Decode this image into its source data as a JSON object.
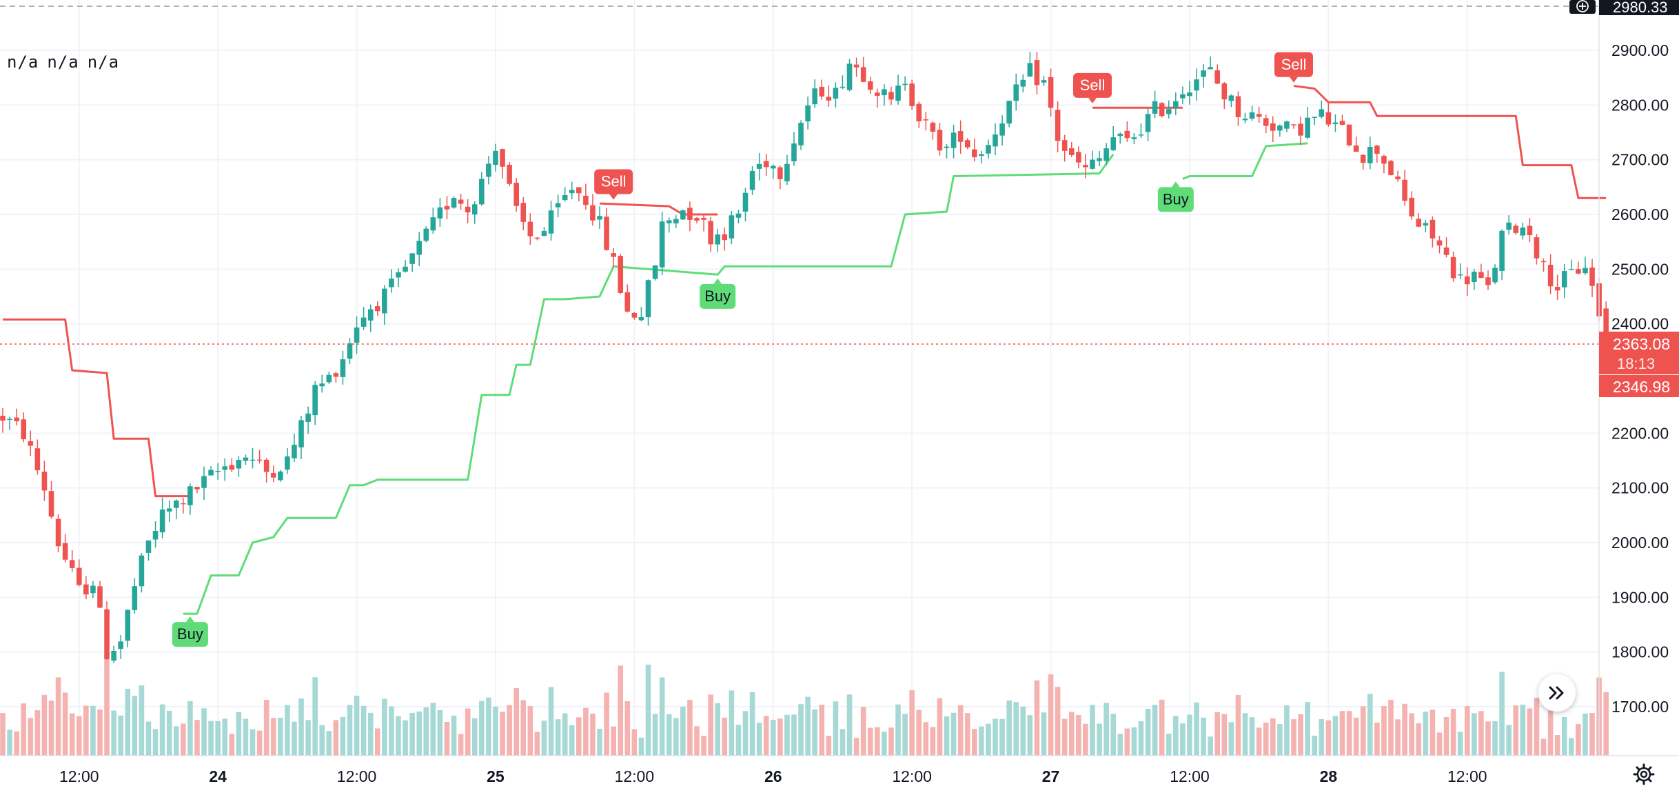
{
  "legend": {
    "values": [
      "n/a",
      "n/a",
      "n/a"
    ]
  },
  "price_axis": {
    "labels": [
      "2900.00",
      "2800.00",
      "2700.00",
      "2600.00",
      "2500.00",
      "2400.00",
      "2200.00",
      "2100.00",
      "2000.00",
      "1900.00",
      "1800.00",
      "1700.00"
    ],
    "crosshair_price": "2980.33",
    "last_price": "2363.08",
    "countdown": "18:13",
    "low_label": "2346.98"
  },
  "time_axis": {
    "labels": [
      "12:00",
      "24",
      "12:00",
      "25",
      "12:00",
      "26",
      "12:00",
      "27",
      "12:00",
      "28",
      "12:00"
    ]
  },
  "colors": {
    "up": "#26a69a",
    "down": "#ef5350",
    "buy_line": "#5fdc78",
    "sell_line": "#ef5350",
    "up_volume": "#a6d9d5",
    "down_volume": "#f4b2b0",
    "grid": "#f0f3fa",
    "text": "#131722"
  },
  "icons": {
    "crosshair": "plus-circle-icon",
    "scroll": "double-chevron-right-icon",
    "settings": "gear-icon"
  },
  "chart_data": {
    "type": "candlestick",
    "ylim": [
      1630,
      2930
    ],
    "yticks": [
      1700,
      1800,
      1900,
      2000,
      2100,
      2200,
      2400,
      2500,
      2600,
      2700,
      2800,
      2900
    ],
    "time_ticks": [
      {
        "t": 11,
        "label": "12:00"
      },
      {
        "t": 31,
        "label": "24"
      },
      {
        "t": 51,
        "label": "12:00"
      },
      {
        "t": 71,
        "label": "25"
      },
      {
        "t": 91,
        "label": "12:00"
      },
      {
        "t": 111,
        "label": "26"
      },
      {
        "t": 131,
        "label": "12:00"
      },
      {
        "t": 151,
        "label": "27"
      },
      {
        "t": 171,
        "label": "12:00"
      },
      {
        "t": 191,
        "label": "28"
      },
      {
        "t": 211,
        "label": "12:00"
      }
    ],
    "close_path": [
      [
        0,
        2230
      ],
      [
        3,
        2200
      ],
      [
        6,
        2100
      ],
      [
        8,
        2000
      ],
      [
        11,
        1910
      ],
      [
        13,
        1930
      ],
      [
        15,
        1800
      ],
      [
        17,
        1820
      ],
      [
        19,
        1920
      ],
      [
        21,
        2000
      ],
      [
        23,
        2050
      ],
      [
        26,
        2080
      ],
      [
        29,
        2110
      ],
      [
        32,
        2140
      ],
      [
        35,
        2160
      ],
      [
        38,
        2130
      ],
      [
        41,
        2150
      ],
      [
        43,
        2210
      ],
      [
        45,
        2280
      ],
      [
        47,
        2300
      ],
      [
        49,
        2340
      ],
      [
        51,
        2400
      ],
      [
        53,
        2430
      ],
      [
        55,
        2450
      ],
      [
        57,
        2480
      ],
      [
        59,
        2520
      ],
      [
        61,
        2560
      ],
      [
        63,
        2600
      ],
      [
        65,
        2640
      ],
      [
        67,
        2610
      ],
      [
        69,
        2660
      ],
      [
        71,
        2730
      ],
      [
        72,
        2690
      ],
      [
        74,
        2600
      ],
      [
        76,
        2560
      ],
      [
        78,
        2570
      ],
      [
        80,
        2610
      ],
      [
        82,
        2650
      ],
      [
        84,
        2630
      ],
      [
        86,
        2580
      ],
      [
        88,
        2510
      ],
      [
        90,
        2420
      ],
      [
        92,
        2420
      ],
      [
        94,
        2510
      ],
      [
        95,
        2580
      ],
      [
        98,
        2610
      ],
      [
        100,
        2600
      ],
      [
        102,
        2560
      ],
      [
        104,
        2570
      ],
      [
        106,
        2600
      ],
      [
        108,
        2680
      ],
      [
        110,
        2700
      ],
      [
        112,
        2680
      ],
      [
        114,
        2740
      ],
      [
        116,
        2800
      ],
      [
        118,
        2830
      ],
      [
        120,
        2820
      ],
      [
        122,
        2880
      ],
      [
        124,
        2860
      ],
      [
        126,
        2830
      ],
      [
        128,
        2800
      ],
      [
        130,
        2850
      ],
      [
        132,
        2780
      ],
      [
        134,
        2740
      ],
      [
        136,
        2720
      ],
      [
        138,
        2750
      ],
      [
        140,
        2710
      ],
      [
        142,
        2730
      ],
      [
        144,
        2780
      ],
      [
        146,
        2820
      ],
      [
        148,
        2860
      ],
      [
        150,
        2840
      ],
      [
        152,
        2740
      ],
      [
        154,
        2700
      ],
      [
        156,
        2680
      ],
      [
        158,
        2700
      ],
      [
        160,
        2740
      ],
      [
        162,
        2730
      ],
      [
        164,
        2760
      ],
      [
        166,
        2790
      ],
      [
        168,
        2800
      ],
      [
        170,
        2830
      ],
      [
        172,
        2850
      ],
      [
        174,
        2860
      ],
      [
        176,
        2820
      ],
      [
        178,
        2790
      ],
      [
        180,
        2780
      ],
      [
        182,
        2770
      ],
      [
        184,
        2760
      ],
      [
        186,
        2750
      ],
      [
        188,
        2770
      ],
      [
        190,
        2780
      ],
      [
        192,
        2760
      ],
      [
        194,
        2740
      ],
      [
        196,
        2710
      ],
      [
        198,
        2720
      ],
      [
        200,
        2680
      ],
      [
        202,
        2620
      ],
      [
        204,
        2580
      ],
      [
        206,
        2560
      ],
      [
        208,
        2520
      ],
      [
        210,
        2480
      ],
      [
        212,
        2490
      ],
      [
        214,
        2460
      ],
      [
        216,
        2560
      ],
      [
        218,
        2580
      ],
      [
        220,
        2570
      ],
      [
        222,
        2500
      ],
      [
        224,
        2470
      ],
      [
        226,
        2490
      ],
      [
        228,
        2510
      ],
      [
        230,
        2420
      ],
      [
        231,
        2363.08
      ]
    ],
    "buy_line": [
      [
        26,
        1870
      ],
      [
        28,
        1870
      ],
      [
        30,
        1940
      ],
      [
        34,
        1940
      ],
      [
        36,
        2000
      ],
      [
        39,
        2010
      ],
      [
        41,
        2045
      ],
      [
        48,
        2045
      ],
      [
        50,
        2105
      ],
      [
        52,
        2105
      ],
      [
        54,
        2115
      ],
      [
        67,
        2115
      ],
      [
        69,
        2270
      ],
      [
        73,
        2270
      ],
      [
        74,
        2325
      ],
      [
        76,
        2325
      ],
      [
        78,
        2445
      ],
      [
        81,
        2445
      ],
      [
        86,
        2450
      ],
      [
        88,
        2505
      ],
      [
        103,
        2490
      ],
      [
        104,
        2505
      ],
      [
        128,
        2505
      ],
      [
        130,
        2600
      ],
      [
        136,
        2605
      ],
      [
        137,
        2670
      ],
      [
        158,
        2675
      ],
      [
        160,
        2710
      ],
      "break",
      [
        170,
        2665
      ],
      [
        171,
        2670
      ],
      [
        180,
        2670
      ],
      [
        182,
        2725
      ],
      [
        188,
        2730
      ]
    ],
    "sell_line": [
      [
        0,
        2408
      ],
      [
        9,
        2408
      ],
      [
        10,
        2315
      ],
      [
        15,
        2310
      ],
      [
        16,
        2190
      ],
      [
        21,
        2190
      ],
      [
        22,
        2085
      ],
      [
        27,
        2085
      ],
      "break",
      [
        86,
        2620
      ],
      [
        96,
        2615
      ],
      [
        98,
        2600
      ],
      [
        103,
        2600
      ],
      "break",
      [
        157,
        2795
      ],
      [
        170,
        2795
      ],
      "break",
      [
        186,
        2835
      ],
      [
        189,
        2830
      ],
      [
        191,
        2805
      ],
      [
        197,
        2805
      ],
      [
        198,
        2780
      ],
      [
        218,
        2780
      ],
      [
        219,
        2690
      ],
      [
        226,
        2690
      ],
      [
        227,
        2630
      ],
      [
        231,
        2630
      ]
    ],
    "signals": [
      {
        "type": "buy",
        "label": "Buy",
        "t": 27,
        "y": 1870
      },
      {
        "type": "sell",
        "label": "Sell",
        "t": 88,
        "y": 2622
      },
      {
        "type": "buy",
        "label": "Buy",
        "t": 103,
        "y": 2488
      },
      {
        "type": "sell",
        "label": "Sell",
        "t": 157,
        "y": 2798
      },
      {
        "type": "buy",
        "label": "Buy",
        "t": 169,
        "y": 2665
      },
      {
        "type": "sell",
        "label": "Sell",
        "t": 186,
        "y": 2836
      }
    ],
    "current_price": 2363.08,
    "crosshair_price": 2980.33
  }
}
